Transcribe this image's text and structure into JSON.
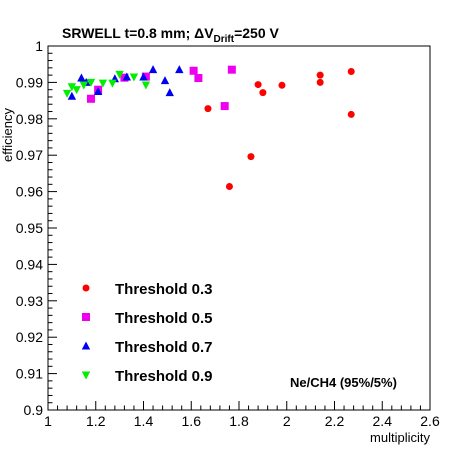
{
  "chart_data": {
    "type": "scatter",
    "title_parts": [
      "SRWELL t=0.8 mm; ",
      "ΔV",
      "Drift",
      "=250 V"
    ],
    "xlabel": "multiplicity",
    "ylabel": "efficiency",
    "xlim": [
      1.0,
      2.6
    ],
    "ylim": [
      0.9,
      1.0
    ],
    "x_ticks": [
      1,
      1.2,
      1.4,
      1.6,
      1.8,
      2,
      2.2,
      2.4,
      2.6
    ],
    "x_tick_labels": [
      "1",
      "1.2",
      "1.4",
      "1.6",
      "1.8",
      "2",
      "2.2",
      "2.4",
      "2.6"
    ],
    "y_ticks": [
      0.9,
      0.91,
      0.92,
      0.93,
      0.94,
      0.95,
      0.96,
      0.97,
      0.98,
      0.99,
      1.0
    ],
    "y_tick_labels": [
      "0.9",
      "0.91",
      "0.92",
      "0.93",
      "0.94",
      "0.95",
      "0.96",
      "0.97",
      "0.98",
      "0.99",
      "1"
    ],
    "annotation": "Ne/CH4 (95%/5%)",
    "grid": false,
    "legend_position": "bottom-left",
    "series": [
      {
        "name": "Threshold 0.3",
        "marker": "circle",
        "color": "#ff0000",
        "x": [
          1.67,
          1.76,
          1.85,
          1.88,
          1.9,
          1.98,
          2.14,
          2.14,
          2.27,
          2.27
        ],
        "y": [
          0.9828,
          0.9614,
          0.9696,
          0.9894,
          0.9872,
          0.9892,
          0.99,
          0.992,
          0.993,
          0.9812
        ]
      },
      {
        "name": "Threshold 0.5",
        "marker": "square",
        "color": "#ee00ee",
        "x": [
          1.18,
          1.21,
          1.32,
          1.41,
          1.61,
          1.63,
          1.74,
          1.77
        ],
        "y": [
          0.9855,
          0.988,
          0.9913,
          0.9916,
          0.9932,
          0.9912,
          0.9835,
          0.9935
        ]
      },
      {
        "name": "Threshold 0.7",
        "marker": "triangle-up",
        "color": "#0000ee",
        "x": [
          1.1,
          1.14,
          1.16,
          1.21,
          1.28,
          1.33,
          1.4,
          1.44,
          1.49,
          1.51,
          1.55
        ],
        "y": [
          0.9862,
          0.9912,
          0.99,
          0.9875,
          0.991,
          0.9915,
          0.9915,
          0.9935,
          0.9905,
          0.9872,
          0.9935
        ]
      },
      {
        "name": "Threshold 0.9",
        "marker": "triangle-down",
        "color": "#00ee00",
        "x": [
          1.08,
          1.1,
          1.12,
          1.15,
          1.18,
          1.23,
          1.27,
          1.3,
          1.36,
          1.41
        ],
        "y": [
          0.987,
          0.9888,
          0.988,
          0.9893,
          0.99,
          0.9898,
          0.9898,
          0.9922,
          0.9915,
          0.9893
        ]
      }
    ]
  }
}
